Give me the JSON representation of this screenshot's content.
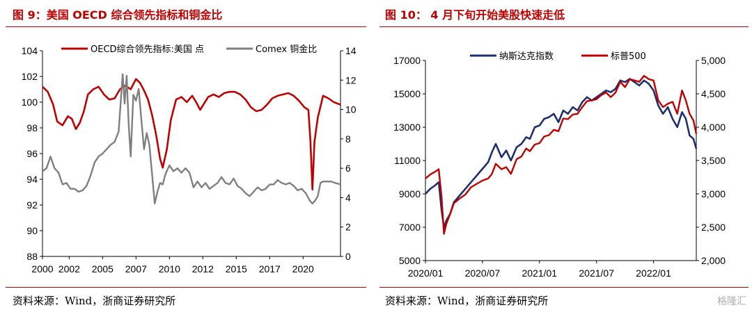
{
  "figures": [
    {
      "id": "fig9",
      "title": "图 9：美国 OECD 综合领先指标和铜金比",
      "source": "资料来源：Wind，浙商证券研究所"
    },
    {
      "id": "fig10",
      "title": "图  10：  4 月下旬开始美股快速走低",
      "source": "资料来源：Wind，浙商证券研究所"
    }
  ],
  "watermark": "格隆汇",
  "colors": {
    "red": "#c00000",
    "gray": "#7f7f7f",
    "navy": "#1f2f6e"
  },
  "chart_data": [
    {
      "type": "line",
      "title": "美国 OECD 综合领先指标和铜金比",
      "x_tick_labels": [
        "2000",
        "2002",
        "2005",
        "2007",
        "2010",
        "2012",
        "2015",
        "2017",
        "2020"
      ],
      "x_tick_years": [
        2000,
        2002,
        2004.5,
        2007,
        2009.5,
        2012,
        2014.5,
        2017,
        2019.5
      ],
      "xlim": [
        2000,
        2022.3
      ],
      "y_left": {
        "ylim": [
          88,
          104
        ],
        "ticks": [
          88,
          90,
          92,
          94,
          96,
          98,
          100,
          102,
          104
        ]
      },
      "y_right": {
        "ylim": [
          0,
          14
        ],
        "ticks": [
          0,
          2,
          4,
          6,
          8,
          10,
          12,
          14
        ]
      },
      "series": [
        {
          "name": "OECD综合领先指标:美国 点",
          "axis": "left",
          "color": "#c00000",
          "x": [
            2000.0,
            2000.4,
            2000.8,
            2001.1,
            2001.5,
            2001.9,
            2002.2,
            2002.5,
            2002.8,
            2003.1,
            2003.4,
            2003.8,
            2004.2,
            2004.6,
            2005.0,
            2005.4,
            2005.8,
            2006.2,
            2006.6,
            2007.0,
            2007.3,
            2007.6,
            2007.9,
            2008.2,
            2008.5,
            2008.8,
            2009.0,
            2009.3,
            2009.6,
            2010.0,
            2010.4,
            2010.8,
            2011.2,
            2011.5,
            2011.8,
            2012.1,
            2012.4,
            2012.8,
            2013.2,
            2013.6,
            2014.0,
            2014.4,
            2014.8,
            2015.2,
            2015.6,
            2016.0,
            2016.4,
            2016.8,
            2017.2,
            2017.6,
            2018.0,
            2018.4,
            2018.8,
            2019.2,
            2019.6,
            2019.9,
            2020.05,
            2020.2,
            2020.35,
            2020.6,
            2021.0,
            2021.4,
            2021.8,
            2022.3
          ],
          "y": [
            101.2,
            100.8,
            99.8,
            98.5,
            98.2,
            98.9,
            98.7,
            97.9,
            98.4,
            99.3,
            100.6,
            101.0,
            101.2,
            100.6,
            100.2,
            100.3,
            101.0,
            101.3,
            101.0,
            101.8,
            101.5,
            100.9,
            100.2,
            99.0,
            97.5,
            95.6,
            94.9,
            96.3,
            98.6,
            100.2,
            100.4,
            100.0,
            100.5,
            100.0,
            99.4,
            99.9,
            100.4,
            100.6,
            100.4,
            100.7,
            100.8,
            100.8,
            100.6,
            100.2,
            99.6,
            99.3,
            99.4,
            99.8,
            100.3,
            100.5,
            100.6,
            100.7,
            100.5,
            100.1,
            99.6,
            99.4,
            97.0,
            93.2,
            96.9,
            98.8,
            100.5,
            100.3,
            100.0,
            99.8
          ]
        },
        {
          "name": "Comex 铜金比",
          "axis": "right",
          "color": "#7f7f7f",
          "x": [
            2000.0,
            2000.3,
            2000.6,
            2000.9,
            2001.2,
            2001.5,
            2001.8,
            2002.1,
            2002.4,
            2002.7,
            2003.0,
            2003.3,
            2003.6,
            2003.9,
            2004.2,
            2004.5,
            2004.8,
            2005.1,
            2005.4,
            2005.7,
            2006.0,
            2006.15,
            2006.3,
            2006.45,
            2006.6,
            2006.8,
            2007.0,
            2007.2,
            2007.4,
            2007.6,
            2007.8,
            2008.0,
            2008.2,
            2008.4,
            2008.6,
            2008.8,
            2009.0,
            2009.2,
            2009.5,
            2009.8,
            2010.1,
            2010.4,
            2010.7,
            2011.0,
            2011.3,
            2011.6,
            2011.9,
            2012.2,
            2012.5,
            2012.8,
            2013.1,
            2013.4,
            2013.7,
            2014.0,
            2014.3,
            2014.6,
            2014.9,
            2015.2,
            2015.5,
            2015.8,
            2016.1,
            2016.4,
            2016.7,
            2017.0,
            2017.3,
            2017.6,
            2017.9,
            2018.2,
            2018.5,
            2018.8,
            2019.1,
            2019.4,
            2019.7,
            2020.0,
            2020.2,
            2020.4,
            2020.6,
            2020.8,
            2021.0,
            2021.3,
            2021.6,
            2021.9,
            2022.3
          ],
          "y": [
            5.8,
            6.0,
            6.8,
            6.0,
            5.7,
            4.9,
            5.0,
            4.6,
            4.6,
            4.4,
            4.5,
            4.8,
            5.5,
            6.4,
            6.8,
            7.0,
            7.3,
            7.6,
            7.8,
            8.5,
            12.4,
            10.4,
            12.3,
            9.0,
            6.8,
            11.0,
            10.6,
            11.4,
            9.3,
            7.3,
            8.4,
            7.6,
            5.6,
            3.6,
            4.4,
            5.0,
            4.9,
            5.6,
            6.2,
            5.8,
            6.0,
            5.7,
            6.0,
            5.7,
            4.7,
            5.1,
            4.7,
            5.0,
            4.6,
            4.8,
            5.0,
            5.4,
            5.0,
            4.9,
            5.3,
            4.8,
            4.6,
            4.3,
            4.1,
            4.4,
            4.7,
            4.5,
            4.6,
            4.9,
            4.9,
            5.2,
            5.0,
            4.9,
            5.0,
            4.8,
            4.5,
            4.6,
            4.3,
            3.8,
            3.6,
            3.8,
            4.1,
            5.0,
            5.1,
            5.1,
            5.1,
            5.0,
            4.9
          ]
        }
      ],
      "legend_position": "top-center"
    },
    {
      "type": "line",
      "title": "4 月下旬开始美股快速走低",
      "x_tick_labels": [
        "2020/01",
        "2020/07",
        "2021/01",
        "2021/07",
        "2022/01"
      ],
      "x_tick_t": [
        0,
        6,
        12,
        18,
        24
      ],
      "xlim": [
        0,
        28.5
      ],
      "y_left": {
        "ylim": [
          5000,
          17000
        ],
        "ticks": [
          5000,
          7000,
          9000,
          11000,
          13000,
          15000,
          17000
        ]
      },
      "y_right": {
        "ylim": [
          2000,
          5000
        ],
        "ticks": [
          2000,
          2500,
          3000,
          3500,
          4000,
          4500,
          5000
        ],
        "tick_labels": [
          "2,000",
          "2,500",
          "3,000",
          "3,500",
          "4,000",
          "4,500",
          "5,000"
        ]
      },
      "series": [
        {
          "name": "纳斯达克指数",
          "axis": "left",
          "color": "#1f2f6e",
          "t": [
            0.0,
            0.5,
            1.0,
            1.4,
            1.7,
            1.95,
            2.2,
            2.6,
            3.0,
            3.6,
            4.2,
            4.8,
            5.4,
            6.0,
            6.6,
            7.0,
            7.4,
            8.0,
            8.5,
            9.0,
            9.6,
            10.1,
            10.6,
            11.0,
            11.5,
            12.0,
            12.5,
            13.0,
            13.5,
            14.0,
            14.5,
            15.0,
            15.5,
            16.0,
            16.5,
            17.0,
            17.5,
            18.0,
            18.5,
            19.0,
            19.5,
            20.0,
            20.5,
            21.0,
            21.5,
            22.0,
            22.5,
            23.0,
            23.5,
            24.0,
            24.5,
            25.0,
            25.5,
            26.0,
            26.5,
            27.0,
            27.4,
            27.8,
            28.2,
            28.5
          ],
          "y": [
            9000,
            9300,
            9500,
            9700,
            8000,
            7000,
            7400,
            7800,
            8500,
            8900,
            9300,
            9700,
            10100,
            10500,
            10900,
            11500,
            12000,
            11200,
            11600,
            11000,
            11800,
            12000,
            12400,
            12300,
            13000,
            13100,
            13500,
            13600,
            13800,
            13300,
            14000,
            13800,
            14200,
            14000,
            14500,
            14800,
            14600,
            14800,
            15000,
            15200,
            15100,
            15300,
            15800,
            15700,
            15900,
            15700,
            15500,
            15800,
            15600,
            15200,
            14300,
            13800,
            14200,
            13500,
            13000,
            13900,
            13500,
            12500,
            12300,
            11700
          ]
        },
        {
          "name": "标普500",
          "axis": "right",
          "color": "#c00000",
          "t": [
            0.0,
            0.5,
            1.0,
            1.4,
            1.7,
            1.95,
            2.2,
            2.6,
            3.0,
            3.6,
            4.2,
            4.8,
            5.4,
            6.0,
            6.6,
            7.0,
            7.4,
            8.0,
            8.5,
            9.0,
            9.6,
            10.1,
            10.6,
            11.0,
            11.5,
            12.0,
            12.5,
            13.0,
            13.5,
            14.0,
            14.5,
            15.0,
            15.5,
            16.0,
            16.5,
            17.0,
            17.5,
            18.0,
            18.5,
            19.0,
            19.5,
            20.0,
            20.5,
            21.0,
            21.5,
            22.0,
            22.5,
            23.0,
            23.5,
            24.0,
            24.5,
            25.0,
            25.5,
            26.0,
            26.5,
            27.0,
            27.4,
            27.8,
            28.2,
            28.5
          ],
          "y": [
            3230,
            3290,
            3330,
            3370,
            2950,
            2400,
            2550,
            2700,
            2860,
            2930,
            2990,
            3100,
            3150,
            3200,
            3230,
            3300,
            3450,
            3370,
            3400,
            3300,
            3520,
            3560,
            3680,
            3640,
            3740,
            3760,
            3860,
            3880,
            3960,
            3940,
            4130,
            4120,
            4190,
            4200,
            4300,
            4390,
            4400,
            4420,
            4480,
            4520,
            4450,
            4520,
            4680,
            4600,
            4720,
            4700,
            4680,
            4770,
            4720,
            4700,
            4400,
            4300,
            4350,
            4380,
            4200,
            4550,
            4400,
            4200,
            4100,
            3900
          ]
        }
      ],
      "legend_position": "top-center"
    }
  ]
}
